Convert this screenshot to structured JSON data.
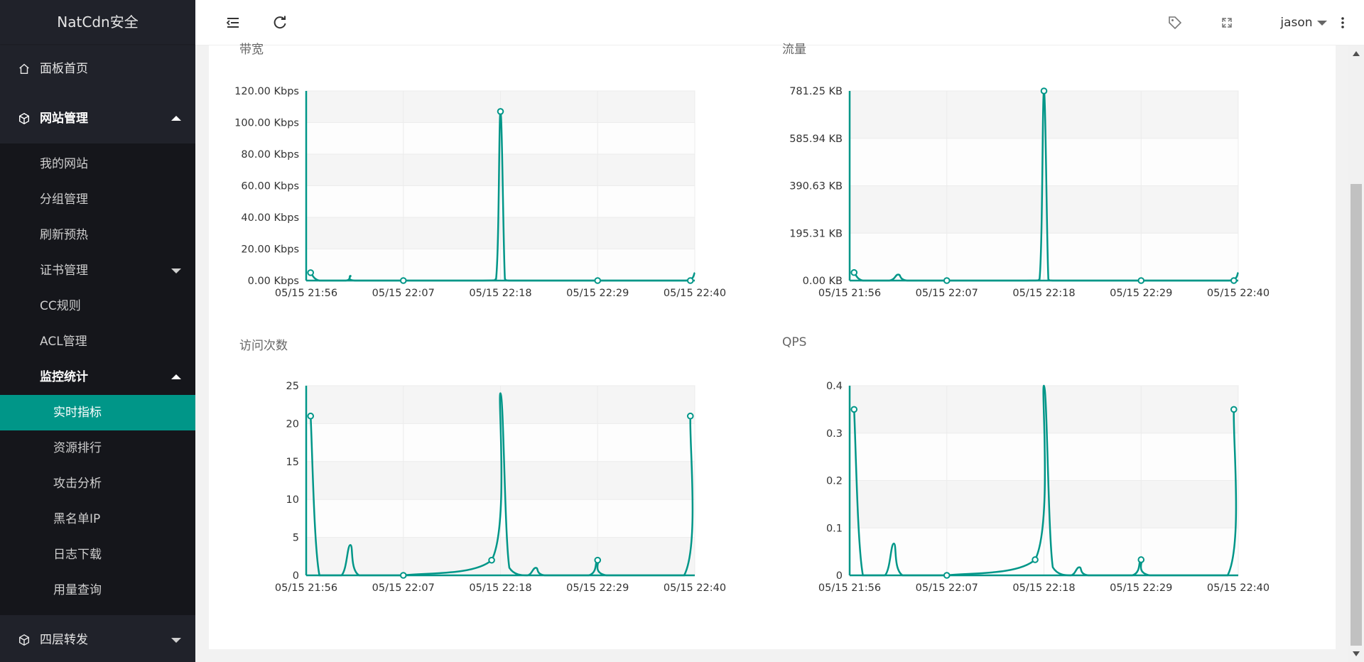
{
  "app": {
    "title": "NatCdn安全"
  },
  "colors": {
    "accent": "#009688",
    "sidebar_bg": "#20222a",
    "submenu_bg": "#15161b"
  },
  "sidebar": {
    "items": [
      {
        "label": "面板首页",
        "icon": "home-icon"
      },
      {
        "label": "网站管理",
        "icon": "cube-icon"
      },
      {
        "label": "四层转发",
        "icon": "cube-icon"
      }
    ],
    "website_sub": [
      {
        "label": "我的网站"
      },
      {
        "label": "分组管理"
      },
      {
        "label": "刷新预热"
      },
      {
        "label": "证书管理"
      },
      {
        "label": "CC规则"
      },
      {
        "label": "ACL管理"
      },
      {
        "label": "监控统计"
      }
    ],
    "monitor_sub": [
      {
        "label": "实时指标"
      },
      {
        "label": "资源排行"
      },
      {
        "label": "攻击分析"
      },
      {
        "label": "黑名单IP"
      },
      {
        "label": "日志下载"
      },
      {
        "label": "用量查询"
      }
    ]
  },
  "header": {
    "user": "jason"
  },
  "charts_text": {
    "bandwidth_title": "带宽",
    "traffic_title": "流量",
    "visits_title": "访问次数",
    "qps_title": "QPS"
  },
  "chart_data": [
    {
      "type": "line",
      "title": "带宽",
      "x_ticks": [
        "05/15 21:56",
        "05/15 22:07",
        "05/15 22:18",
        "05/15 22:29",
        "05/15 22:40"
      ],
      "y_ticks": [
        "0.00 Kbps",
        "20.00 Kbps",
        "40.00 Kbps",
        "60.00 Kbps",
        "80.00 Kbps",
        "100.00 Kbps",
        "120.00 Kbps"
      ],
      "ylim": [
        0,
        120
      ],
      "x": [
        0.5,
        1.5,
        4.5,
        5.0,
        5.5,
        11,
        20,
        21.5,
        22.0,
        22.5,
        23,
        25,
        33,
        38,
        43,
        44
      ],
      "y": [
        5,
        0,
        0,
        3,
        0,
        0,
        0,
        1,
        107,
        1,
        0,
        0,
        0,
        0,
        0,
        5
      ],
      "markers": [
        0.5,
        11,
        22,
        33,
        43.5
      ],
      "grid": true
    },
    {
      "type": "line",
      "title": "流量",
      "x_ticks": [
        "05/15 21:56",
        "05/15 22:07",
        "05/15 22:18",
        "05/15 22:29",
        "05/15 22:40"
      ],
      "y_ticks": [
        "0.00 KB",
        "195.31 KB",
        "390.63 KB",
        "585.94 KB",
        "781.25 KB"
      ],
      "ylim": [
        0,
        781.25
      ],
      "x": [
        0.5,
        1.5,
        4.5,
        5.5,
        6.5,
        11,
        20,
        21.5,
        22.0,
        22.5,
        23,
        25,
        33,
        38,
        43,
        44
      ],
      "y": [
        33,
        0,
        0,
        25,
        0,
        0,
        0,
        5,
        781.25,
        5,
        0,
        0,
        0,
        0,
        0,
        33
      ],
      "markers": [
        0.5,
        11,
        22,
        33,
        43.5
      ],
      "grid": true
    },
    {
      "type": "line",
      "title": "访问次数",
      "x_ticks": [
        "05/15 21:56",
        "05/15 22:07",
        "05/15 22:18",
        "05/15 22:29",
        "05/15 22:40"
      ],
      "y_ticks": [
        "0",
        "5",
        "10",
        "15",
        "20",
        "25"
      ],
      "ylim": [
        0,
        25
      ],
      "x": [
        0.5,
        1.5,
        4,
        5,
        6,
        11,
        21,
        22,
        23,
        25,
        26,
        27,
        32,
        33,
        34,
        42.8,
        43.5
      ],
      "y": [
        21,
        0,
        0,
        4,
        0,
        0,
        2,
        24,
        1,
        0,
        1,
        0,
        0,
        2,
        0,
        0,
        21
      ],
      "markers": [
        0.5,
        11,
        21,
        33,
        43.5
      ],
      "grid": true
    },
    {
      "type": "line",
      "title": "QPS",
      "x_ticks": [
        "05/15 21:56",
        "05/15 22:07",
        "05/15 22:18",
        "05/15 22:29",
        "05/15 22:40"
      ],
      "y_ticks": [
        "0",
        "0.1",
        "0.2",
        "0.3",
        "0.4"
      ],
      "ylim": [
        0,
        0.4
      ],
      "x": [
        0.5,
        1.5,
        4,
        5,
        6,
        11,
        21,
        22,
        23,
        25,
        26,
        27,
        32,
        33,
        34,
        42.8,
        43.5
      ],
      "y": [
        0.35,
        0,
        0,
        0.067,
        0,
        0,
        0.033,
        0.4,
        0.017,
        0,
        0.017,
        0,
        0,
        0.033,
        0,
        0,
        0.35
      ],
      "markers": [
        0.5,
        11,
        21,
        33,
        43.5
      ],
      "grid": true
    }
  ]
}
